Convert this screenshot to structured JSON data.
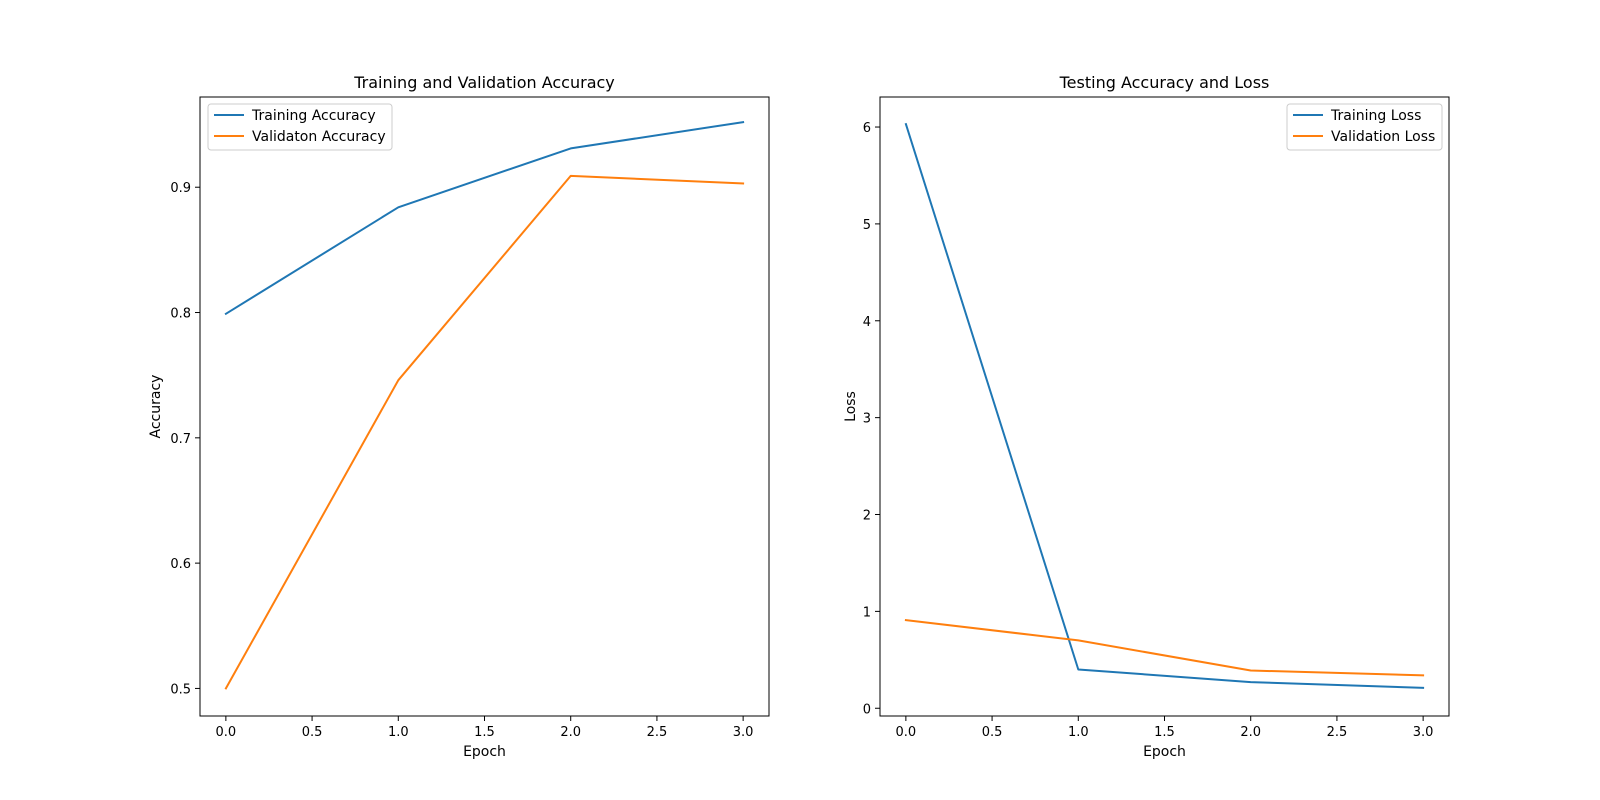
{
  "chart_data": [
    {
      "type": "line",
      "title": "Training and Validation Accuracy",
      "xlabel": "Epoch",
      "ylabel": "Accuracy",
      "x": [
        0,
        1,
        2,
        3
      ],
      "xlim": [
        -0.15,
        3.15
      ],
      "ylim": [
        0.478,
        0.972
      ],
      "xticks": [
        0.0,
        0.5,
        1.0,
        1.5,
        2.0,
        2.5,
        3.0
      ],
      "xtick_labels": [
        "0.0",
        "0.5",
        "1.0",
        "1.5",
        "2.0",
        "2.5",
        "3.0"
      ],
      "yticks": [
        0.5,
        0.6,
        0.7,
        0.8,
        0.9
      ],
      "ytick_labels": [
        "0.5",
        "0.6",
        "0.7",
        "0.8",
        "0.9"
      ],
      "grid": false,
      "legend_position": "upper-left",
      "series": [
        {
          "name": "Training Accuracy",
          "color": "#1f77b4",
          "values": [
            0.799,
            0.884,
            0.931,
            0.952
          ]
        },
        {
          "name": "Validaton Accuracy",
          "color": "#ff7f0e",
          "values": [
            0.5,
            0.746,
            0.909,
            0.903
          ]
        }
      ]
    },
    {
      "type": "line",
      "title": "Testing Accuracy and Loss",
      "xlabel": "Epoch",
      "ylabel": "Loss",
      "x": [
        0,
        1,
        2,
        3
      ],
      "xlim": [
        -0.15,
        3.15
      ],
      "ylim": [
        -0.08,
        6.31
      ],
      "xticks": [
        0.0,
        0.5,
        1.0,
        1.5,
        2.0,
        2.5,
        3.0
      ],
      "xtick_labels": [
        "0.0",
        "0.5",
        "1.0",
        "1.5",
        "2.0",
        "2.5",
        "3.0"
      ],
      "yticks": [
        0,
        1,
        2,
        3,
        4,
        5,
        6
      ],
      "ytick_labels": [
        "0",
        "1",
        "2",
        "3",
        "4",
        "5",
        "6"
      ],
      "grid": false,
      "legend_position": "upper-right",
      "series": [
        {
          "name": "Training Loss",
          "color": "#1f77b4",
          "values": [
            6.03,
            0.4,
            0.27,
            0.21
          ]
        },
        {
          "name": "Validation Loss",
          "color": "#ff7f0e",
          "values": [
            0.91,
            0.7,
            0.39,
            0.34
          ]
        }
      ]
    }
  ]
}
